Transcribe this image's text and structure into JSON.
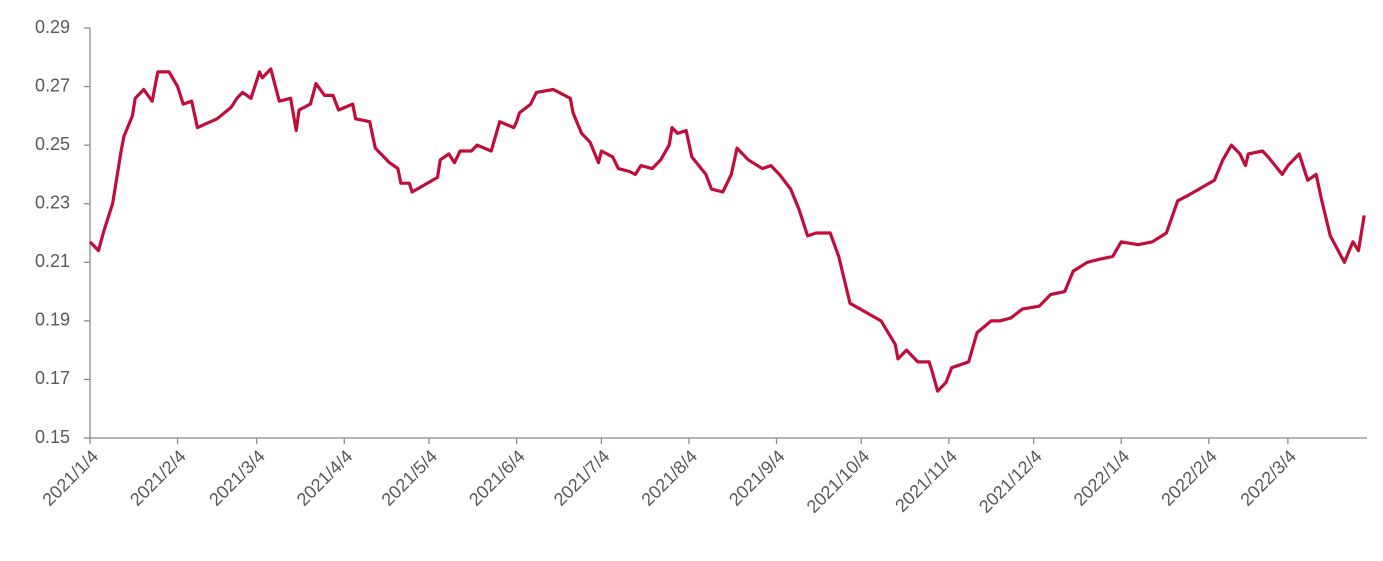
{
  "chart_data": {
    "type": "line",
    "x": [
      "2021-01-04",
      "2021-01-07",
      "2021-01-09",
      "2021-01-12",
      "2021-01-15",
      "2021-01-16",
      "2021-01-19",
      "2021-01-20",
      "2021-01-23",
      "2021-01-26",
      "2021-01-28",
      "2021-02-01",
      "2021-02-04",
      "2021-02-06",
      "2021-02-09",
      "2021-02-11",
      "2021-02-18",
      "2021-02-23",
      "2021-02-25",
      "2021-02-27",
      "2021-03-02",
      "2021-03-05",
      "2021-03-06",
      "2021-03-09",
      "2021-03-12",
      "2021-03-16",
      "2021-03-18",
      "2021-03-19",
      "2021-03-23",
      "2021-03-25",
      "2021-03-28",
      "2021-03-31",
      "2021-04-02",
      "2021-04-07",
      "2021-04-08",
      "2021-04-13",
      "2021-04-15",
      "2021-04-20",
      "2021-04-23",
      "2021-04-24",
      "2021-04-27",
      "2021-04-28",
      "2021-05-07",
      "2021-05-08",
      "2021-05-11",
      "2021-05-13",
      "2021-05-15",
      "2021-05-19",
      "2021-05-21",
      "2021-05-26",
      "2021-05-29",
      "2021-06-03",
      "2021-06-04",
      "2021-06-05",
      "2021-06-09",
      "2021-06-11",
      "2021-06-17",
      "2021-06-19",
      "2021-06-23",
      "2021-06-24",
      "2021-06-27",
      "2021-06-30",
      "2021-07-03",
      "2021-07-04",
      "2021-07-08",
      "2021-07-10",
      "2021-07-14",
      "2021-07-16",
      "2021-07-18",
      "2021-07-22",
      "2021-07-25",
      "2021-07-28",
      "2021-07-29",
      "2021-07-31",
      "2021-08-03",
      "2021-08-05",
      "2021-08-10",
      "2021-08-12",
      "2021-08-16",
      "2021-08-19",
      "2021-08-21",
      "2021-08-25",
      "2021-08-30",
      "2021-09-02",
      "2021-09-05",
      "2021-09-09",
      "2021-09-12",
      "2021-09-15",
      "2021-09-18",
      "2021-09-23",
      "2021-09-26",
      "2021-09-30",
      "2021-10-11",
      "2021-10-16",
      "2021-10-17",
      "2021-10-20",
      "2021-10-24",
      "2021-10-28",
      "2021-10-29",
      "2021-10-31",
      "2021-11-03",
      "2021-11-05",
      "2021-11-08",
      "2021-11-11",
      "2021-11-14",
      "2021-11-19",
      "2021-11-22",
      "2021-11-26",
      "2021-11-30",
      "2021-12-06",
      "2021-12-10",
      "2021-12-15",
      "2021-12-18",
      "2021-12-23",
      "2021-12-27",
      "2022-01-01",
      "2022-01-04",
      "2022-01-10",
      "2022-01-15",
      "2022-01-20",
      "2022-01-24",
      "2022-01-28",
      "2022-02-06",
      "2022-02-09",
      "2022-02-12",
      "2022-02-15",
      "2022-02-17",
      "2022-02-18",
      "2022-02-23",
      "2022-02-25",
      "2022-03-02",
      "2022-03-04",
      "2022-03-08",
      "2022-03-11",
      "2022-03-14",
      "2022-03-16",
      "2022-03-19",
      "2022-03-24",
      "2022-03-27",
      "2022-03-29",
      "2022-03-31"
    ],
    "series": [
      {
        "color": "#c00d3b",
        "values": [
          0.217,
          0.214,
          0.221,
          0.23,
          0.248,
          0.253,
          0.26,
          0.266,
          0.269,
          0.265,
          0.275,
          0.275,
          0.27,
          0.264,
          0.265,
          0.256,
          0.259,
          0.263,
          0.266,
          0.268,
          0.266,
          0.275,
          0.273,
          0.276,
          0.265,
          0.266,
          0.255,
          0.262,
          0.264,
          0.271,
          0.267,
          0.267,
          0.262,
          0.264,
          0.259,
          0.258,
          0.249,
          0.244,
          0.242,
          0.237,
          0.237,
          0.234,
          0.239,
          0.245,
          0.247,
          0.244,
          0.248,
          0.248,
          0.25,
          0.248,
          0.258,
          0.256,
          0.258,
          0.261,
          0.264,
          0.268,
          0.269,
          0.268,
          0.266,
          0.261,
          0.254,
          0.251,
          0.244,
          0.248,
          0.246,
          0.242,
          0.241,
          0.24,
          0.243,
          0.242,
          0.245,
          0.25,
          0.256,
          0.254,
          0.255,
          0.246,
          0.24,
          0.235,
          0.234,
          0.24,
          0.249,
          0.245,
          0.242,
          0.243,
          0.24,
          0.235,
          0.228,
          0.219,
          0.22,
          0.22,
          0.212,
          0.196,
          0.19,
          0.182,
          0.177,
          0.18,
          0.176,
          0.176,
          0.173,
          0.166,
          0.169,
          0.174,
          0.175,
          0.176,
          0.186,
          0.19,
          0.19,
          0.191,
          0.194,
          0.195,
          0.199,
          0.2,
          0.207,
          0.21,
          0.211,
          0.212,
          0.217,
          0.216,
          0.217,
          0.22,
          0.231,
          0.233,
          0.238,
          0.245,
          0.25,
          0.247,
          0.243,
          0.247,
          0.248,
          0.246,
          0.24,
          0.243,
          0.247,
          0.238,
          0.24,
          0.231,
          0.219,
          0.21,
          0.217,
          0.214,
          0.226
        ]
      }
    ],
    "xlim": [
      "2021-01-04",
      "2022-04-01"
    ],
    "xticks": [
      {
        "value": "2021-01-04",
        "label": "2021/1/4"
      },
      {
        "value": "2021-02-04",
        "label": "2021/2/4"
      },
      {
        "value": "2021-03-04",
        "label": "2021/3/4"
      },
      {
        "value": "2021-04-04",
        "label": "2021/4/4"
      },
      {
        "value": "2021-05-04",
        "label": "2021/5/4"
      },
      {
        "value": "2021-06-04",
        "label": "2021/6/4"
      },
      {
        "value": "2021-07-04",
        "label": "2021/7/4"
      },
      {
        "value": "2021-08-04",
        "label": "2021/8/4"
      },
      {
        "value": "2021-09-04",
        "label": "2021/9/4"
      },
      {
        "value": "2021-10-04",
        "label": "2021/10/4"
      },
      {
        "value": "2021-11-04",
        "label": "2021/11/4"
      },
      {
        "value": "2021-12-04",
        "label": "2021/12/4"
      },
      {
        "value": "2022-01-04",
        "label": "2022/1/4"
      },
      {
        "value": "2022-02-04",
        "label": "2022/2/4"
      },
      {
        "value": "2022-03-04",
        "label": "2022/3/4"
      }
    ],
    "ylim": [
      0.15,
      0.29
    ],
    "yticks": [
      0.15,
      0.17,
      0.19,
      0.21,
      0.23,
      0.25,
      0.27,
      0.29
    ]
  }
}
